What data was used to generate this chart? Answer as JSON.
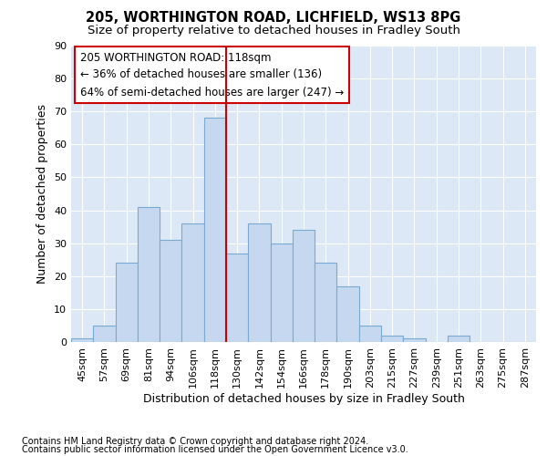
{
  "title1": "205, WORTHINGTON ROAD, LICHFIELD, WS13 8PG",
  "title2": "Size of property relative to detached houses in Fradley South",
  "xlabel": "Distribution of detached houses by size in Fradley South",
  "ylabel": "Number of detached properties",
  "footnote1": "Contains HM Land Registry data © Crown copyright and database right 2024.",
  "footnote2": "Contains public sector information licensed under the Open Government Licence v3.0.",
  "annotation_line1": "205 WORTHINGTON ROAD: 118sqm",
  "annotation_line2": "← 36% of detached houses are smaller (136)",
  "annotation_line3": "64% of semi-detached houses are larger (247) →",
  "bar_labels": [
    "45sqm",
    "57sqm",
    "69sqm",
    "81sqm",
    "94sqm",
    "106sqm",
    "118sqm",
    "130sqm",
    "142sqm",
    "154sqm",
    "166sqm",
    "178sqm",
    "190sqm",
    "203sqm",
    "215sqm",
    "227sqm",
    "239sqm",
    "251sqm",
    "263sqm",
    "275sqm",
    "287sqm"
  ],
  "bar_values": [
    1,
    5,
    24,
    41,
    31,
    36,
    68,
    27,
    36,
    30,
    34,
    24,
    17,
    5,
    2,
    1,
    0,
    2,
    0,
    0,
    0
  ],
  "bar_color": "#c5d8f0",
  "bar_edge_color": "#7aaad0",
  "vline_color": "#cc0000",
  "vline_x": 6.5,
  "ylim": [
    0,
    90
  ],
  "yticks": [
    0,
    10,
    20,
    30,
    40,
    50,
    60,
    70,
    80,
    90
  ],
  "background_color": "#dce8f5",
  "grid_color": "#ffffff",
  "figure_bg": "#ffffff",
  "annotation_box_edge": "#cc0000",
  "annotation_box_face": "#ffffff",
  "title_fontsize": 10.5,
  "subtitle_fontsize": 9.5,
  "axis_label_fontsize": 9,
  "tick_fontsize": 8,
  "footnote_fontsize": 7,
  "annotation_fontsize": 8.5
}
